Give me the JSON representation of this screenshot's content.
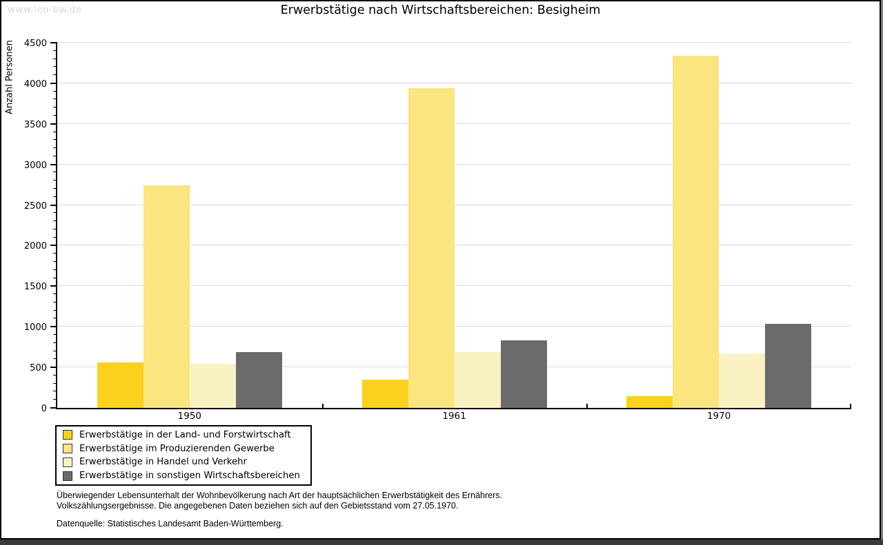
{
  "page": {
    "watermark": "www.leo-bw.de",
    "title": "Erwerbstätige nach Wirtschaftsbereichen: Besigheim",
    "footer": {
      "line1": "Überwiegender Lebensunterhalt der Wohnbevölkerung nach Art der hauptsächlichen Erwerbstätigkeit des Ernährers.",
      "line2": "Volkszählungsergebnisse. Die angegebenen Daten beziehen sich auf den Gebietsstand vom 27.05.1970.",
      "source": "Datenquelle: Statistisches Landesamt Baden-Württemberg."
    }
  },
  "chart_data": {
    "type": "bar",
    "title": "Erwerbstätige nach Wirtschaftsbereichen: Besigheim",
    "xlabel": "",
    "ylabel": "Anzahl Personen",
    "categories": [
      "1950",
      "1961",
      "1970"
    ],
    "series": [
      {
        "name": "Erwerbstätige in der Land- und Forstwirtschaft",
        "color": "#FBD11E",
        "values": [
          560,
          345,
          145
        ]
      },
      {
        "name": "Erwerbstätige im Produzierenden Gewerbe",
        "color": "#FAE57E",
        "values": [
          2745,
          3940,
          4340
        ]
      },
      {
        "name": "Erwerbstätige in Handel und Verkehr",
        "color": "#FBF2C3",
        "values": [
          540,
          690,
          675
        ]
      },
      {
        "name": "Erwerbstätige in sonstigen Wirtschaftsbereichen",
        "color": "#6B6B6B",
        "values": [
          690,
          835,
          1035
        ]
      }
    ],
    "ylim": [
      0,
      4500
    ],
    "yticks": [
      0,
      500,
      1000,
      1500,
      2000,
      2500,
      3000,
      3500,
      4000,
      4500
    ],
    "minor_tick_step": 100,
    "grid": true,
    "gridline_color": "#d9d9d9",
    "legend_position": "bottom-left"
  }
}
